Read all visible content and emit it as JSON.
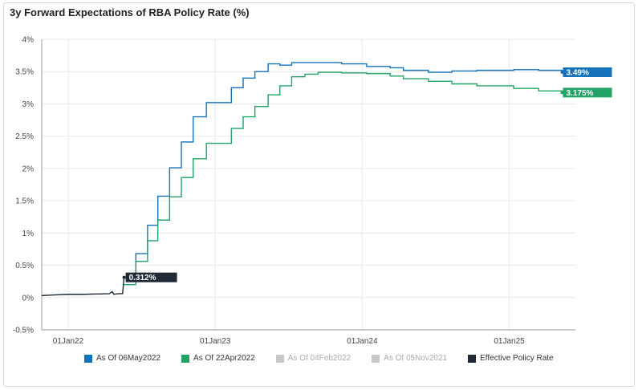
{
  "title": "3y Forward Expectations of RBA Policy Rate (%)",
  "colors": {
    "series1": "#1372b9",
    "series2": "#21a366",
    "effective": "#1f2a36",
    "disabled": "#c8c8c8",
    "grid": "#e9e9e9"
  },
  "legend": [
    {
      "label": "As Of 06May2022",
      "color": "#1372b9",
      "active": true
    },
    {
      "label": "As Of 22Apr2022",
      "color": "#21a366",
      "active": true
    },
    {
      "label": "As Of 04Feb2022",
      "color": "#c8c8c8",
      "active": false
    },
    {
      "label": "As Of 05Nov2021",
      "color": "#c8c8c8",
      "active": false
    },
    {
      "label": "Effective Policy Rate",
      "color": "#1f2a36",
      "active": true
    }
  ],
  "chart_data": {
    "type": "line",
    "title": "3y Forward Expectations of RBA Policy Rate (%)",
    "xlabel": "",
    "ylabel": "",
    "ylim": [
      -0.5,
      4
    ],
    "yticks": [
      "-0.5%",
      "0%",
      "0.5%",
      "1%",
      "1.5%",
      "2%",
      "2.5%",
      "3%",
      "3.5%",
      "4%"
    ],
    "xticks": [
      {
        "label": "01Jan22",
        "t": 2022.0
      },
      {
        "label": "01Jan23",
        "t": 2023.0
      },
      {
        "label": "01Jan24",
        "t": 2024.0
      },
      {
        "label": "01Jan25",
        "t": 2025.0
      }
    ],
    "xlim": [
      2021.82,
      2025.45
    ],
    "grid": true,
    "legend_position": "bottom",
    "series": [
      {
        "name": "Effective Policy Rate",
        "key": "effective",
        "step": false,
        "points": [
          [
            2021.82,
            0.03
          ],
          [
            2021.9,
            0.04
          ],
          [
            2022.0,
            0.05
          ],
          [
            2022.1,
            0.05
          ],
          [
            2022.2,
            0.055
          ],
          [
            2022.28,
            0.06
          ],
          [
            2022.3,
            0.09
          ],
          [
            2022.31,
            0.05
          ],
          [
            2022.34,
            0.06
          ],
          [
            2022.37,
            0.06
          ],
          [
            2022.38,
            0.31
          ]
        ]
      },
      {
        "name": "As Of 06May2022",
        "key": "series1",
        "step": true,
        "points": [
          [
            2022.38,
            0.31
          ],
          [
            2022.46,
            0.68
          ],
          [
            2022.54,
            1.12
          ],
          [
            2022.61,
            1.57
          ],
          [
            2022.69,
            2.01
          ],
          [
            2022.77,
            2.41
          ],
          [
            2022.85,
            2.8
          ],
          [
            2022.94,
            3.02
          ],
          [
            2023.11,
            3.25
          ],
          [
            2023.19,
            3.4
          ],
          [
            2023.27,
            3.5
          ],
          [
            2023.36,
            3.62
          ],
          [
            2023.44,
            3.6
          ],
          [
            2023.52,
            3.64
          ],
          [
            2023.7,
            3.64
          ],
          [
            2023.86,
            3.62
          ],
          [
            2024.03,
            3.58
          ],
          [
            2024.19,
            3.56
          ],
          [
            2024.28,
            3.52
          ],
          [
            2024.45,
            3.49
          ],
          [
            2024.61,
            3.51
          ],
          [
            2024.78,
            3.52
          ],
          [
            2025.03,
            3.53
          ],
          [
            2025.2,
            3.52
          ],
          [
            2025.36,
            3.49
          ]
        ]
      },
      {
        "name": "As Of 22Apr2022",
        "key": "series2",
        "step": true,
        "points": [
          [
            2022.38,
            0.2
          ],
          [
            2022.46,
            0.56
          ],
          [
            2022.54,
            0.88
          ],
          [
            2022.61,
            1.2
          ],
          [
            2022.69,
            1.56
          ],
          [
            2022.77,
            1.86
          ],
          [
            2022.85,
            2.15
          ],
          [
            2022.94,
            2.39
          ],
          [
            2023.11,
            2.62
          ],
          [
            2023.19,
            2.8
          ],
          [
            2023.27,
            2.96
          ],
          [
            2023.36,
            3.14
          ],
          [
            2023.44,
            3.28
          ],
          [
            2023.52,
            3.42
          ],
          [
            2023.61,
            3.46
          ],
          [
            2023.7,
            3.49
          ],
          [
            2023.86,
            3.48
          ],
          [
            2024.03,
            3.47
          ],
          [
            2024.19,
            3.43
          ],
          [
            2024.28,
            3.39
          ],
          [
            2024.45,
            3.35
          ],
          [
            2024.61,
            3.31
          ],
          [
            2024.78,
            3.28
          ],
          [
            2025.03,
            3.24
          ],
          [
            2025.2,
            3.2
          ],
          [
            2025.36,
            3.175
          ]
        ]
      }
    ],
    "annotations": [
      {
        "text": "0.312%",
        "series": "effective",
        "x": 2022.38,
        "y": 0.312
      },
      {
        "text": "3.49%",
        "series": "series1",
        "x": 2025.36,
        "y": 3.49
      },
      {
        "text": "3.175%",
        "series": "series2",
        "x": 2025.36,
        "y": 3.175
      }
    ]
  }
}
